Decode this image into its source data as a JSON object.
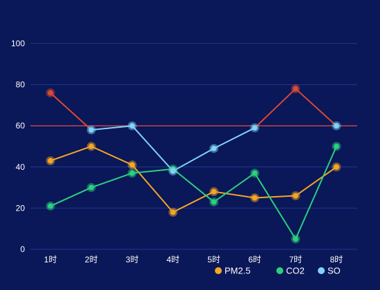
{
  "chart_data": {
    "type": "line",
    "categories": [
      "1时",
      "2时",
      "3时",
      "4时",
      "5时",
      "6时",
      "7时",
      "8时"
    ],
    "ylim": [
      0,
      100
    ],
    "yticks": [
      0,
      20,
      40,
      60,
      80,
      100
    ],
    "grid": true,
    "legend_position": "bottom-right",
    "threshold": {
      "value": 60,
      "color": "#c7444a"
    },
    "series": [
      {
        "name": "PM2.5",
        "color": "#f5a623",
        "values": [
          43,
          50,
          41,
          18,
          28,
          25,
          26,
          40
        ]
      },
      {
        "name": "CO2",
        "color": "#2ad07e",
        "values": [
          21,
          30,
          37,
          39,
          23,
          37,
          5,
          50
        ]
      },
      {
        "name": "SO",
        "color": "#7fd3f7",
        "values": [
          null,
          58,
          60,
          38,
          49,
          59,
          null,
          60
        ],
        "above_threshold_color": "#d84a32",
        "above_threshold_values": [
          76,
          58,
          null,
          null,
          null,
          59,
          78,
          60
        ]
      }
    ]
  },
  "colors": {
    "background": "#0a1758",
    "grid": "#1f3a8f",
    "text": "#ffffff"
  }
}
